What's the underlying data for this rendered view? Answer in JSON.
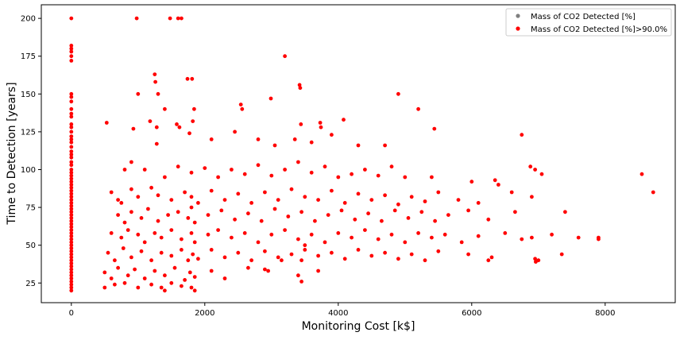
{
  "chart_data": {
    "type": "scatter",
    "xlabel": "Monitoring Cost [k$]",
    "ylabel": "Time to Detection [years]",
    "xlim": [
      -450,
      9050
    ],
    "ylim": [
      12,
      209
    ],
    "x_ticks": [
      0,
      2000,
      4000,
      6000,
      8000
    ],
    "y_ticks": [
      25,
      50,
      75,
      100,
      125,
      150,
      175,
      200
    ],
    "grid": false,
    "legend_position": "top-right",
    "colors": {
      "all": "#7f7f7f",
      "threshold": "#ff0000"
    },
    "series": [
      {
        "name": "Mass of CO2 Detected [%]",
        "color": "#7f7f7f",
        "points": []
      },
      {
        "name": "Mass of CO2 Detected [%]>90.0%",
        "color": "#ff0000",
        "points": [
          [
            0,
            200
          ],
          [
            0,
            182
          ],
          [
            0,
            180
          ],
          [
            0,
            178
          ],
          [
            0,
            175
          ],
          [
            0,
            172
          ],
          [
            0,
            150
          ],
          [
            0,
            148
          ],
          [
            0,
            145
          ],
          [
            0,
            140
          ],
          [
            0,
            137
          ],
          [
            0,
            135
          ],
          [
            0,
            130
          ],
          [
            0,
            128
          ],
          [
            0,
            125
          ],
          [
            0,
            122
          ],
          [
            0,
            120
          ],
          [
            0,
            118
          ],
          [
            0,
            115
          ],
          [
            0,
            112
          ],
          [
            0,
            110
          ],
          [
            0,
            108
          ],
          [
            0,
            105
          ],
          [
            0,
            103
          ],
          [
            0,
            100
          ],
          [
            0,
            98
          ],
          [
            0,
            96
          ],
          [
            0,
            94
          ],
          [
            0,
            92
          ],
          [
            0,
            90
          ],
          [
            0,
            88
          ],
          [
            0,
            86
          ],
          [
            0,
            84
          ],
          [
            0,
            82
          ],
          [
            0,
            80
          ],
          [
            0,
            78
          ],
          [
            0,
            76
          ],
          [
            0,
            74
          ],
          [
            0,
            72
          ],
          [
            0,
            70
          ],
          [
            0,
            68
          ],
          [
            0,
            66
          ],
          [
            0,
            64
          ],
          [
            0,
            62
          ],
          [
            0,
            60
          ],
          [
            0,
            58
          ],
          [
            0,
            56
          ],
          [
            0,
            54
          ],
          [
            0,
            52
          ],
          [
            0,
            50
          ],
          [
            0,
            48
          ],
          [
            0,
            46
          ],
          [
            0,
            44
          ],
          [
            0,
            42
          ],
          [
            0,
            40
          ],
          [
            0,
            38
          ],
          [
            0,
            36
          ],
          [
            0,
            34
          ],
          [
            0,
            32
          ],
          [
            0,
            30
          ],
          [
            0,
            28
          ],
          [
            0,
            26
          ],
          [
            0,
            24
          ],
          [
            0,
            22
          ],
          [
            0,
            20
          ],
          [
            980,
            200
          ],
          [
            1480,
            200
          ],
          [
            1600,
            200
          ],
          [
            1650,
            200
          ],
          [
            3200,
            175
          ],
          [
            1250,
            163
          ],
          [
            1260,
            158
          ],
          [
            1740,
            160
          ],
          [
            1810,
            160
          ],
          [
            1000,
            150
          ],
          [
            1300,
            150
          ],
          [
            3420,
            156
          ],
          [
            3430,
            154
          ],
          [
            4900,
            150
          ],
          [
            2540,
            143
          ],
          [
            2560,
            140
          ],
          [
            2990,
            147
          ],
          [
            5200,
            140
          ],
          [
            1400,
            140
          ],
          [
            1840,
            140
          ],
          [
            530,
            131
          ],
          [
            930,
            127
          ],
          [
            1180,
            132
          ],
          [
            1280,
            128
          ],
          [
            1280,
            117
          ],
          [
            1770,
            124
          ],
          [
            3440,
            130
          ],
          [
            3730,
            131
          ],
          [
            3740,
            128
          ],
          [
            4080,
            133
          ],
          [
            5440,
            127
          ],
          [
            6750,
            123
          ],
          [
            2100,
            120
          ],
          [
            2450,
            125
          ],
          [
            2800,
            120
          ],
          [
            3050,
            116
          ],
          [
            3350,
            120
          ],
          [
            3600,
            118
          ],
          [
            3900,
            123
          ],
          [
            4300,
            116
          ],
          [
            4700,
            116
          ],
          [
            1580,
            130
          ],
          [
            1620,
            128
          ],
          [
            1820,
            132
          ],
          [
            800,
            100
          ],
          [
            900,
            105
          ],
          [
            1100,
            100
          ],
          [
            1400,
            95
          ],
          [
            1600,
            102
          ],
          [
            1800,
            98
          ],
          [
            2000,
            101
          ],
          [
            2200,
            95
          ],
          [
            2400,
            100
          ],
          [
            2600,
            97
          ],
          [
            2800,
            103
          ],
          [
            3000,
            96
          ],
          [
            3200,
            100
          ],
          [
            3400,
            105
          ],
          [
            3600,
            98
          ],
          [
            3800,
            102
          ],
          [
            4000,
            95
          ],
          [
            4200,
            97
          ],
          [
            4400,
            100
          ],
          [
            4600,
            96
          ],
          [
            4800,
            102
          ],
          [
            5000,
            95
          ],
          [
            5400,
            95
          ],
          [
            6000,
            92
          ],
          [
            6350,
            93
          ],
          [
            6880,
            102
          ],
          [
            6950,
            100
          ],
          [
            7050,
            97
          ],
          [
            8550,
            97
          ],
          [
            8720,
            85
          ],
          [
            6400,
            90
          ],
          [
            6600,
            85
          ],
          [
            600,
            85
          ],
          [
            700,
            80
          ],
          [
            750,
            78
          ],
          [
            900,
            87
          ],
          [
            1000,
            82
          ],
          [
            1200,
            88
          ],
          [
            1300,
            83
          ],
          [
            1500,
            80
          ],
          [
            1700,
            85
          ],
          [
            1800,
            82
          ],
          [
            1900,
            78
          ],
          [
            2100,
            86
          ],
          [
            2300,
            80
          ],
          [
            2500,
            84
          ],
          [
            2700,
            78
          ],
          [
            2900,
            85
          ],
          [
            3100,
            80
          ],
          [
            3300,
            87
          ],
          [
            3500,
            82
          ],
          [
            3700,
            80
          ],
          [
            3900,
            86
          ],
          [
            4100,
            78
          ],
          [
            4300,
            84
          ],
          [
            4500,
            80
          ],
          [
            4700,
            83
          ],
          [
            4900,
            77
          ],
          [
            5100,
            82
          ],
          [
            5300,
            79
          ],
          [
            5500,
            85
          ],
          [
            5800,
            80
          ],
          [
            6100,
            78
          ],
          [
            6900,
            82
          ],
          [
            700,
            70
          ],
          [
            800,
            65
          ],
          [
            900,
            72
          ],
          [
            1050,
            68
          ],
          [
            1150,
            74
          ],
          [
            1300,
            66
          ],
          [
            1450,
            70
          ],
          [
            1600,
            72
          ],
          [
            1750,
            68
          ],
          [
            1800,
            75
          ],
          [
            1850,
            65
          ],
          [
            2050,
            70
          ],
          [
            2250,
            73
          ],
          [
            2450,
            67
          ],
          [
            2650,
            71
          ],
          [
            2850,
            66
          ],
          [
            3050,
            74
          ],
          [
            3250,
            69
          ],
          [
            3450,
            72
          ],
          [
            3650,
            66
          ],
          [
            3850,
            70
          ],
          [
            4050,
            73
          ],
          [
            4250,
            67
          ],
          [
            4450,
            71
          ],
          [
            4650,
            66
          ],
          [
            4850,
            73
          ],
          [
            5050,
            68
          ],
          [
            5250,
            72
          ],
          [
            5450,
            66
          ],
          [
            5650,
            70
          ],
          [
            5950,
            73
          ],
          [
            6250,
            67
          ],
          [
            6650,
            72
          ],
          [
            7400,
            72
          ],
          [
            600,
            58
          ],
          [
            750,
            55
          ],
          [
            850,
            60
          ],
          [
            1000,
            57
          ],
          [
            1100,
            52
          ],
          [
            1250,
            58
          ],
          [
            1350,
            55
          ],
          [
            1500,
            60
          ],
          [
            1650,
            54
          ],
          [
            1800,
            58
          ],
          [
            1850,
            52
          ],
          [
            2050,
            57
          ],
          [
            2200,
            60
          ],
          [
            2400,
            55
          ],
          [
            2600,
            58
          ],
          [
            2800,
            52
          ],
          [
            3000,
            57
          ],
          [
            3200,
            60
          ],
          [
            3400,
            54
          ],
          [
            3500,
            50
          ],
          [
            3600,
            57
          ],
          [
            3800,
            52
          ],
          [
            4000,
            58
          ],
          [
            4200,
            55
          ],
          [
            4400,
            60
          ],
          [
            4600,
            54
          ],
          [
            4800,
            57
          ],
          [
            5000,
            52
          ],
          [
            5200,
            58
          ],
          [
            5400,
            55
          ],
          [
            5600,
            57
          ],
          [
            5850,
            52
          ],
          [
            6100,
            56
          ],
          [
            6500,
            58
          ],
          [
            6750,
            54
          ],
          [
            6900,
            55
          ],
          [
            7200,
            57
          ],
          [
            7600,
            55
          ],
          [
            7900,
            55
          ],
          [
            550,
            45
          ],
          [
            650,
            40
          ],
          [
            780,
            48
          ],
          [
            900,
            42
          ],
          [
            1050,
            46
          ],
          [
            1200,
            40
          ],
          [
            1350,
            45
          ],
          [
            1500,
            43
          ],
          [
            1650,
            47
          ],
          [
            1750,
            40
          ],
          [
            1820,
            44
          ],
          [
            1900,
            41
          ],
          [
            2100,
            47
          ],
          [
            2300,
            42
          ],
          [
            2500,
            45
          ],
          [
            2700,
            40
          ],
          [
            2900,
            46
          ],
          [
            3100,
            42
          ],
          [
            3300,
            44
          ],
          [
            3450,
            40
          ],
          [
            3500,
            47
          ],
          [
            3700,
            43
          ],
          [
            3900,
            45
          ],
          [
            4100,
            41
          ],
          [
            4300,
            47
          ],
          [
            4500,
            43
          ],
          [
            4700,
            45
          ],
          [
            4900,
            41
          ],
          [
            5100,
            44
          ],
          [
            5300,
            40
          ],
          [
            5500,
            46
          ],
          [
            5950,
            44
          ],
          [
            6300,
            42
          ],
          [
            6950,
            41
          ],
          [
            7350,
            44
          ],
          [
            7900,
            54
          ],
          [
            500,
            32
          ],
          [
            600,
            28
          ],
          [
            700,
            35
          ],
          [
            850,
            30
          ],
          [
            950,
            34
          ],
          [
            1100,
            28
          ],
          [
            1250,
            33
          ],
          [
            1400,
            30
          ],
          [
            1550,
            35
          ],
          [
            1700,
            27
          ],
          [
            1780,
            32
          ],
          [
            1850,
            29
          ],
          [
            2100,
            33
          ],
          [
            2300,
            28
          ],
          [
            2650,
            35
          ],
          [
            2950,
            33
          ],
          [
            3400,
            30
          ],
          [
            3450,
            26
          ],
          [
            3700,
            33
          ],
          [
            500,
            22
          ],
          [
            650,
            24
          ],
          [
            800,
            25
          ],
          [
            1000,
            22
          ],
          [
            1200,
            24
          ],
          [
            1350,
            22
          ],
          [
            1500,
            25
          ],
          [
            1650,
            23
          ],
          [
            1800,
            22
          ],
          [
            1850,
            20
          ],
          [
            1400,
            20
          ],
          [
            2900,
            34
          ],
          [
            3150,
            40
          ],
          [
            6250,
            40
          ],
          [
            7000,
            40
          ],
          [
            6960,
            39
          ]
        ]
      }
    ]
  }
}
